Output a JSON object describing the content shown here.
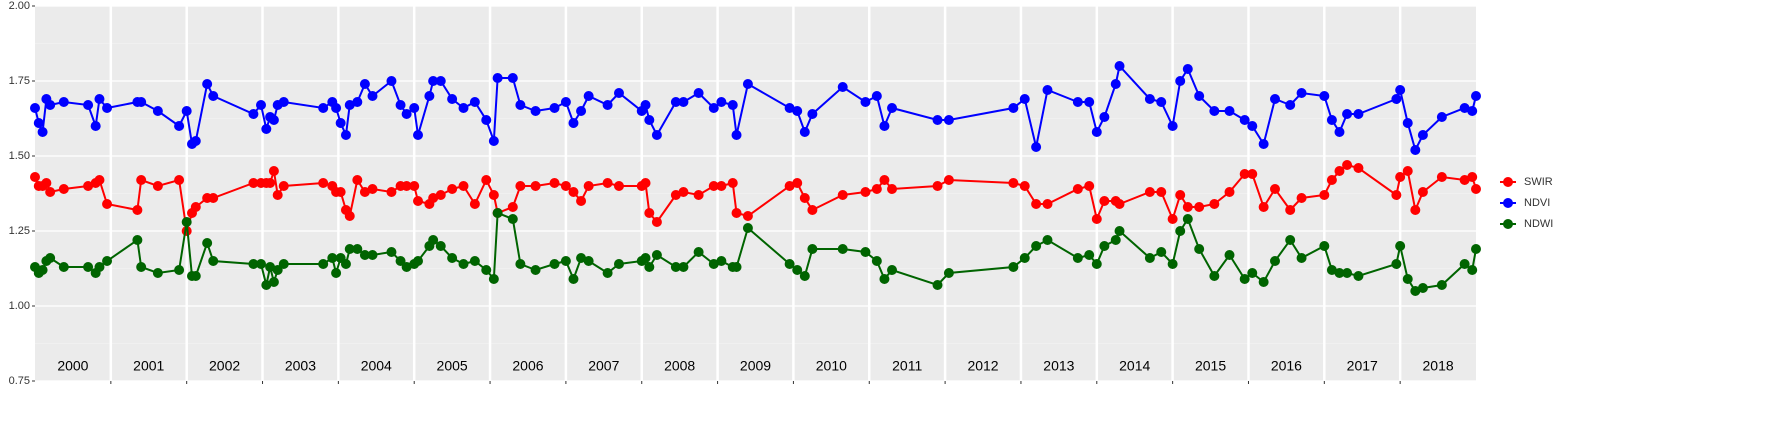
{
  "chart_data": {
    "type": "line",
    "year_labels": [
      "2000",
      "2001",
      "2002",
      "2003",
      "2004",
      "2005",
      "2006",
      "2007",
      "2008",
      "2009",
      "2010",
      "2011",
      "2012",
      "2013",
      "2014",
      "2015",
      "2016",
      "2017",
      "2018"
    ],
    "xlim": [
      2000,
      2019
    ],
    "ylim": [
      0.75,
      2.0
    ],
    "yticks": [
      0.75,
      {
        "value": 1.0,
        "label": "1.00"
      },
      1.25,
      {
        "value": 1.5,
        "label": "1.50"
      },
      1.75,
      {
        "value": 2.0,
        "label": "2.00"
      }
    ],
    "grid": true,
    "legend": "right",
    "x": [
      2000.0,
      2000.05,
      2000.1,
      2000.15,
      2000.2,
      2000.38,
      2000.7,
      2000.8,
      2000.85,
      2000.95,
      2001.35,
      2001.4,
      2001.62,
      2001.9,
      2002.0,
      2002.07,
      2002.12,
      2002.27,
      2002.35,
      2002.88,
      2002.98,
      2003.05,
      2003.1,
      2003.15,
      2003.2,
      2003.28,
      2003.8,
      2003.92,
      2003.97,
      2004.03,
      2004.1,
      2004.15,
      2004.25,
      2004.35,
      2004.45,
      2004.7,
      2004.82,
      2004.9,
      2005.0,
      2005.05,
      2005.2,
      2005.25,
      2005.35,
      2005.5,
      2005.65,
      2005.8,
      2005.95,
      2006.05,
      2006.1,
      2006.3,
      2006.4,
      2006.6,
      2006.85,
      2007.0,
      2007.1,
      2007.2,
      2007.3,
      2007.55,
      2007.7,
      2008.0,
      2008.05,
      2008.1,
      2008.2,
      2008.45,
      2008.55,
      2008.75,
      2008.95,
      2009.05,
      2009.2,
      2009.25,
      2009.4,
      2009.95,
      2010.05,
      2010.15,
      2010.25,
      2010.65,
      2010.95,
      2011.1,
      2011.2,
      2011.3,
      2011.9,
      2012.05,
      2012.9,
      2013.05,
      2013.2,
      2013.35,
      2013.75,
      2013.9,
      2014.0,
      2014.1,
      2014.25,
      2014.3,
      2014.7,
      2014.85,
      2015.0,
      2015.1,
      2015.2,
      2015.35,
      2015.55,
      2015.75,
      2015.95,
      2016.05,
      2016.2,
      2016.35,
      2016.55,
      2016.7,
      2017.0,
      2017.1,
      2017.2,
      2017.3,
      2017.45,
      2017.95,
      2018.0,
      2018.1,
      2018.2,
      2018.3,
      2018.55,
      2018.85,
      2018.95,
      2019.0
    ],
    "series": [
      {
        "name": "SWIR",
        "color": "#ff0000",
        "values": [
          1.43,
          1.4,
          1.4,
          1.41,
          1.38,
          1.39,
          1.4,
          1.41,
          1.42,
          1.34,
          1.32,
          1.42,
          1.4,
          1.42,
          1.25,
          1.31,
          1.33,
          1.36,
          1.36,
          1.41,
          1.41,
          1.41,
          1.41,
          1.45,
          1.37,
          1.4,
          1.41,
          1.4,
          1.38,
          1.38,
          1.32,
          1.3,
          1.42,
          1.38,
          1.39,
          1.38,
          1.4,
          1.4,
          1.4,
          1.35,
          1.34,
          1.36,
          1.37,
          1.39,
          1.4,
          1.34,
          1.42,
          1.37,
          1.31,
          1.33,
          1.4,
          1.4,
          1.41,
          1.4,
          1.38,
          1.35,
          1.4,
          1.41,
          1.4,
          1.4,
          1.41,
          1.31,
          1.28,
          1.37,
          1.38,
          1.37,
          1.4,
          1.4,
          1.41,
          1.31,
          1.3,
          1.4,
          1.41,
          1.36,
          1.32,
          1.37,
          1.38,
          1.39,
          1.42,
          1.39,
          1.4,
          1.42,
          1.41,
          1.4,
          1.34,
          1.34,
          1.39,
          1.4,
          1.29,
          1.35,
          1.35,
          1.34,
          1.38,
          1.38,
          1.29,
          1.37,
          1.33,
          1.33,
          1.34,
          1.38,
          1.44,
          1.44,
          1.33,
          1.39,
          1.32,
          1.36,
          1.37,
          1.42,
          1.45,
          1.47,
          1.46,
          1.37,
          1.43,
          1.45,
          1.32,
          1.38,
          1.43,
          1.42,
          1.43,
          1.39
        ]
      },
      {
        "name": "NDVI",
        "color": "#0000ff",
        "values": [
          1.66,
          1.61,
          1.58,
          1.69,
          1.67,
          1.68,
          1.67,
          1.6,
          1.69,
          1.66,
          1.68,
          1.68,
          1.65,
          1.6,
          1.65,
          1.54,
          1.55,
          1.74,
          1.7,
          1.64,
          1.67,
          1.59,
          1.63,
          1.62,
          1.67,
          1.68,
          1.66,
          1.68,
          1.66,
          1.61,
          1.57,
          1.67,
          1.68,
          1.74,
          1.7,
          1.75,
          1.67,
          1.64,
          1.66,
          1.57,
          1.7,
          1.75,
          1.75,
          1.69,
          1.66,
          1.68,
          1.62,
          1.55,
          1.76,
          1.76,
          1.67,
          1.65,
          1.66,
          1.68,
          1.61,
          1.65,
          1.7,
          1.67,
          1.71,
          1.65,
          1.67,
          1.62,
          1.57,
          1.68,
          1.68,
          1.71,
          1.66,
          1.68,
          1.67,
          1.57,
          1.74,
          1.66,
          1.65,
          1.58,
          1.64,
          1.73,
          1.68,
          1.7,
          1.6,
          1.66,
          1.62,
          1.62,
          1.66,
          1.69,
          1.53,
          1.72,
          1.68,
          1.68,
          1.58,
          1.63,
          1.74,
          1.8,
          1.69,
          1.68,
          1.6,
          1.75,
          1.79,
          1.7,
          1.65,
          1.65,
          1.62,
          1.6,
          1.54,
          1.69,
          1.67,
          1.71,
          1.7,
          1.62,
          1.58,
          1.64,
          1.64,
          1.69,
          1.72,
          1.61,
          1.52,
          1.57,
          1.63,
          1.66,
          1.65,
          1.7
        ]
      },
      {
        "name": "NDWI",
        "color": "#006400",
        "values": [
          1.13,
          1.11,
          1.12,
          1.15,
          1.16,
          1.13,
          1.13,
          1.11,
          1.13,
          1.15,
          1.22,
          1.13,
          1.11,
          1.12,
          1.28,
          1.1,
          1.1,
          1.21,
          1.15,
          1.14,
          1.14,
          1.07,
          1.13,
          1.08,
          1.12,
          1.14,
          1.14,
          1.16,
          1.11,
          1.16,
          1.14,
          1.19,
          1.19,
          1.17,
          1.17,
          1.18,
          1.15,
          1.13,
          1.14,
          1.15,
          1.2,
          1.22,
          1.2,
          1.16,
          1.14,
          1.15,
          1.12,
          1.09,
          1.31,
          1.29,
          1.14,
          1.12,
          1.14,
          1.15,
          1.09,
          1.16,
          1.15,
          1.11,
          1.14,
          1.15,
          1.16,
          1.13,
          1.17,
          1.13,
          1.13,
          1.18,
          1.14,
          1.15,
          1.13,
          1.13,
          1.26,
          1.14,
          1.12,
          1.1,
          1.19,
          1.19,
          1.18,
          1.15,
          1.09,
          1.12,
          1.07,
          1.11,
          1.13,
          1.16,
          1.2,
          1.22,
          1.16,
          1.17,
          1.14,
          1.2,
          1.22,
          1.25,
          1.16,
          1.18,
          1.14,
          1.25,
          1.29,
          1.19,
          1.1,
          1.17,
          1.09,
          1.11,
          1.08,
          1.15,
          1.22,
          1.16,
          1.2,
          1.12,
          1.11,
          1.11,
          1.1,
          1.14,
          1.2,
          1.09,
          1.05,
          1.06,
          1.07,
          1.14,
          1.12,
          1.19
        ]
      }
    ]
  }
}
